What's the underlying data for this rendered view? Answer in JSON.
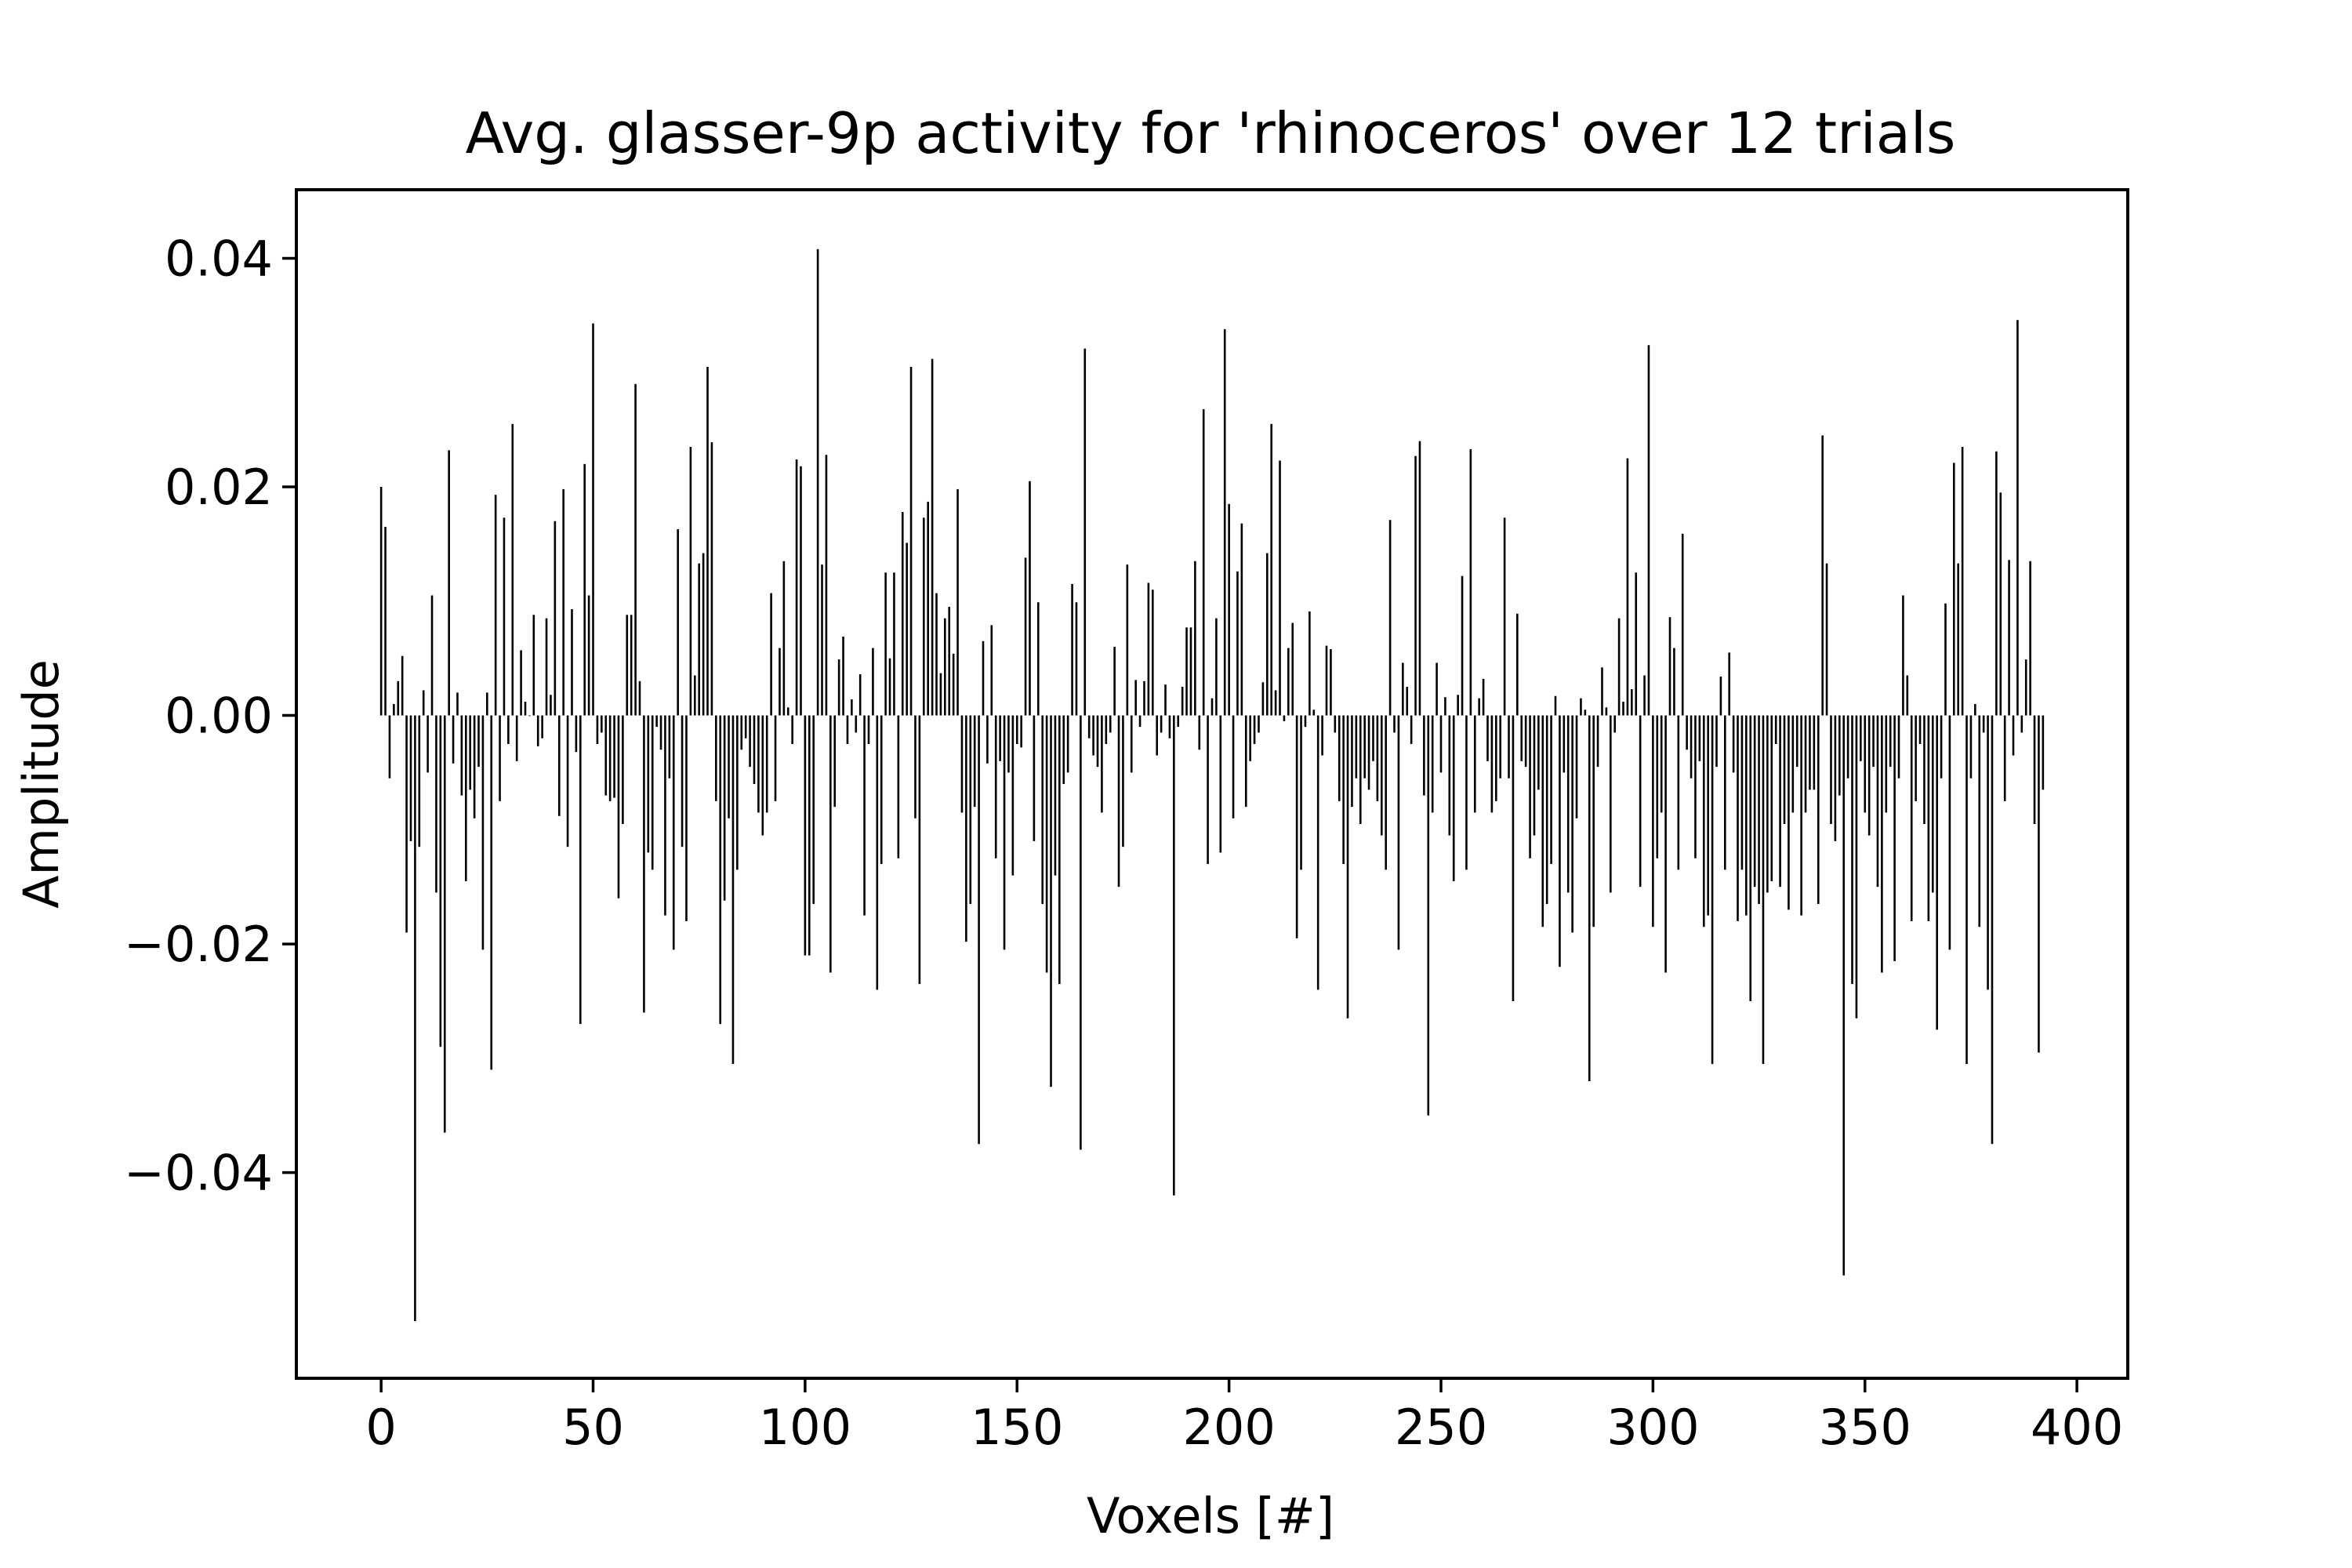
{
  "chart_data": {
    "type": "bar",
    "title": "Avg. glasser-9p activity for 'rhinoceros' over 12 trials",
    "xlabel": "Voxels [#]",
    "ylabel": "Amplitude",
    "xlim": [
      -20,
      412
    ],
    "ylim": [
      -0.058,
      0.046
    ],
    "xticks": [
      0,
      50,
      100,
      150,
      200,
      250,
      300,
      350,
      400
    ],
    "xtick_labels": [
      "0",
      "50",
      "100",
      "150",
      "200",
      "250",
      "300",
      "350",
      "400"
    ],
    "yticks": [
      -0.04,
      -0.02,
      0.0,
      0.02,
      0.04
    ],
    "ytick_labels": [
      "−0.04",
      "−0.02",
      "0.00",
      "0.02",
      "0.04"
    ],
    "grid": false,
    "bar_color": "#000000",
    "x": [
      0,
      1,
      2,
      3,
      4,
      5,
      6,
      7,
      8,
      9,
      10,
      11,
      12,
      13,
      14,
      15,
      16,
      17,
      18,
      19,
      20,
      21,
      22,
      23,
      24,
      25,
      26,
      27,
      28,
      29,
      30,
      31,
      32,
      33,
      34,
      35,
      36,
      37,
      38,
      39,
      40,
      41,
      42,
      43,
      44,
      45,
      46,
      47,
      48,
      49,
      50,
      51,
      52,
      53,
      54,
      55,
      56,
      57,
      58,
      59,
      60,
      61,
      62,
      63,
      64,
      65,
      66,
      67,
      68,
      69,
      70,
      71,
      72,
      73,
      74,
      75,
      76,
      77,
      78,
      79,
      80,
      81,
      82,
      83,
      84,
      85,
      86,
      87,
      88,
      89,
      90,
      91,
      92,
      93,
      94,
      95,
      96,
      97,
      98,
      99,
      100,
      101,
      102,
      103,
      104,
      105,
      106,
      107,
      108,
      109,
      110,
      111,
      112,
      113,
      114,
      115,
      116,
      117,
      118,
      119,
      120,
      121,
      122,
      123,
      124,
      125,
      126,
      127,
      128,
      129,
      130,
      131,
      132,
      133,
      134,
      135,
      136,
      137,
      138,
      139,
      140,
      141,
      142,
      143,
      144,
      145,
      146,
      147,
      148,
      149,
      150,
      151,
      152,
      153,
      154,
      155,
      156,
      157,
      158,
      159,
      160,
      161,
      162,
      163,
      164,
      165,
      166,
      167,
      168,
      169,
      170,
      171,
      172,
      173,
      174,
      175,
      176,
      177,
      178,
      179,
      180,
      181,
      182,
      183,
      184,
      185,
      186,
      187,
      188,
      189,
      190,
      191,
      192,
      193,
      194,
      195,
      196,
      197,
      198,
      199,
      200,
      201,
      202,
      203,
      204,
      205,
      206,
      207,
      208,
      209,
      210,
      211,
      212,
      213,
      214,
      215,
      216,
      217,
      218,
      219,
      220,
      221,
      222,
      223,
      224,
      225,
      226,
      227,
      228,
      229,
      230,
      231,
      232,
      233,
      234,
      235,
      236,
      237,
      238,
      239,
      240,
      241,
      242,
      243,
      244,
      245,
      246,
      247,
      248,
      249,
      250,
      251,
      252,
      253,
      254,
      255,
      256,
      257,
      258,
      259,
      260,
      261,
      262,
      263,
      264,
      265,
      266,
      267,
      268,
      269,
      270,
      271,
      272,
      273,
      274,
      275,
      276,
      277,
      278,
      279,
      280,
      281,
      282,
      283,
      284,
      285,
      286,
      287,
      288,
      289,
      290,
      291,
      292,
      293,
      294,
      295,
      296,
      297,
      298,
      299,
      300,
      301,
      302,
      303,
      304,
      305,
      306,
      307,
      308,
      309,
      310,
      311,
      312,
      313,
      314,
      315,
      316,
      317,
      318,
      319,
      320,
      321,
      322,
      323,
      324,
      325,
      326,
      327,
      328,
      329,
      330,
      331,
      332,
      333,
      334,
      335,
      336,
      337,
      338,
      339,
      340,
      341,
      342,
      343,
      344,
      345,
      346,
      347,
      348,
      349,
      350,
      351,
      352,
      353,
      354,
      355,
      356,
      357,
      358,
      359,
      360,
      361,
      362,
      363,
      364,
      365,
      366,
      367,
      368,
      369,
      370,
      371,
      372,
      373,
      374,
      375,
      376,
      377,
      378,
      379,
      380,
      381,
      382,
      383,
      384,
      385,
      386,
      387,
      388,
      389,
      390,
      391,
      392
    ],
    "values": [
      0.02,
      0.0165,
      -0.0055,
      0.001,
      0.003,
      0.0052,
      -0.019,
      -0.011,
      -0.053,
      -0.0115,
      0.0022,
      -0.005,
      0.0105,
      -0.0155,
      -0.029,
      -0.0365,
      0.0232,
      -0.0042,
      0.002,
      -0.007,
      -0.0145,
      -0.0065,
      -0.009,
      -0.0045,
      -0.0205,
      0.002,
      -0.031,
      0.0193,
      -0.0075,
      0.0173,
      -0.0025,
      0.0255,
      -0.004,
      0.0057,
      0.0012,
      0.0,
      0.0088,
      -0.0027,
      -0.002,
      0.0085,
      0.0018,
      0.017,
      -0.0088,
      0.0198,
      -0.0115,
      0.0093,
      -0.0032,
      -0.027,
      0.022,
      0.0105,
      0.0343,
      -0.0025,
      -0.0015,
      -0.007,
      -0.0075,
      -0.0072,
      -0.016,
      -0.0095,
      0.0088,
      0.0088,
      0.029,
      0.003,
      -0.026,
      -0.012,
      -0.0135,
      -0.001,
      -0.003,
      -0.0175,
      -0.0055,
      -0.0205,
      0.0163,
      -0.0115,
      -0.018,
      0.0235,
      0.0035,
      0.0133,
      0.0142,
      0.0305,
      0.0239,
      -0.0075,
      -0.027,
      -0.0162,
      -0.009,
      -0.0305,
      -0.0135,
      -0.003,
      -0.002,
      -0.0045,
      -0.006,
      -0.0085,
      -0.0105,
      -0.0085,
      0.0107,
      -0.0075,
      0.0059,
      0.0135,
      0.0007,
      -0.0025,
      0.0224,
      0.0218,
      -0.021,
      -0.021,
      -0.0165,
      0.0408,
      0.0132,
      0.0228,
      -0.0225,
      -0.008,
      0.0049,
      0.0069,
      -0.0025,
      0.0014,
      -0.0015,
      0.0036,
      -0.0175,
      -0.0025,
      0.0059,
      -0.024,
      -0.013,
      0.0125,
      0.005,
      0.0125,
      -0.0125,
      0.0178,
      0.0151,
      0.0305,
      -0.009,
      -0.0235,
      0.0173,
      0.0187,
      0.0312,
      0.0107,
      0.0037,
      0.0085,
      0.0095,
      0.0054,
      0.0198,
      -0.0085,
      -0.0198,
      -0.0165,
      -0.008,
      -0.0375,
      0.0065,
      -0.0042,
      0.0079,
      -0.0125,
      -0.004,
      -0.0205,
      -0.005,
      -0.014,
      -0.0025,
      -0.0028,
      0.0138,
      0.0205,
      -0.011,
      0.0099,
      -0.0165,
      -0.0225,
      -0.0325,
      -0.014,
      -0.0235,
      -0.006,
      -0.005,
      0.0115,
      0.0099,
      -0.038,
      0.0321,
      -0.002,
      -0.0035,
      -0.0045,
      -0.0085,
      -0.0025,
      -0.0015,
      0.006,
      -0.015,
      -0.0115,
      0.0132,
      -0.005,
      0.0031,
      -0.001,
      0.003,
      0.0116,
      0.011,
      -0.0035,
      -0.0015,
      0.0027,
      -0.002,
      -0.042,
      -0.001,
      0.0025,
      0.0077,
      0.0077,
      0.0135,
      -0.003,
      0.0268,
      -0.013,
      0.0015,
      0.0085,
      -0.012,
      0.0338,
      0.0185,
      -0.009,
      0.0126,
      0.0168,
      -0.008,
      -0.004,
      -0.0025,
      -0.0015,
      0.0029,
      0.0142,
      0.0255,
      0.0022,
      0.0223,
      -0.0005,
      0.0059,
      0.0081,
      -0.0195,
      -0.0135,
      -0.001,
      0.0091,
      0.0005,
      -0.024,
      -0.0035,
      0.0061,
      0.0058,
      -0.0015,
      -0.0075,
      -0.013,
      -0.0265,
      -0.008,
      -0.0055,
      -0.0095,
      -0.0055,
      -0.0065,
      -0.004,
      -0.0075,
      -0.0105,
      -0.0135,
      0.0171,
      -0.0015,
      -0.0205,
      0.0046,
      0.0025,
      -0.0025,
      0.0227,
      0.024,
      -0.007,
      -0.035,
      -0.0085,
      0.0046,
      -0.005,
      0.0016,
      -0.0105,
      -0.0145,
      0.0018,
      0.0122,
      -0.0135,
      0.0233,
      -0.0085,
      0.0015,
      0.0032,
      -0.004,
      -0.0085,
      -0.0075,
      -0.0055,
      0.0173,
      -0.0055,
      -0.025,
      0.0089,
      -0.004,
      -0.0045,
      -0.0125,
      -0.0105,
      -0.0065,
      -0.0185,
      -0.0165,
      -0.013,
      0.0017,
      -0.022,
      -0.005,
      -0.0155,
      -0.019,
      -0.009,
      0.0015,
      0.0005,
      -0.032,
      -0.0185,
      -0.0045,
      0.0042,
      0.0007,
      -0.0155,
      -0.0015,
      0.0085,
      0.0012,
      0.0225,
      0.0023,
      0.0125,
      -0.015,
      0.0035,
      0.0324,
      -0.0185,
      -0.0125,
      -0.0085,
      -0.0225,
      0.0086,
      0.0059,
      -0.0135,
      0.0159,
      -0.003,
      -0.0055,
      -0.0125,
      -0.004,
      -0.0185,
      -0.0175,
      -0.0305,
      -0.0045,
      0.0034,
      -0.0135,
      0.0055,
      -0.005,
      -0.018,
      -0.0135,
      -0.0175,
      -0.025,
      -0.015,
      -0.0165,
      -0.0305,
      -0.0155,
      -0.0145,
      -0.0025,
      -0.015,
      -0.0095,
      -0.017,
      -0.0085,
      -0.0045,
      -0.0175,
      -0.0085,
      -0.0065,
      -0.0065,
      -0.0165,
      0.0245,
      0.0133,
      -0.0095,
      -0.011,
      -0.007,
      -0.049,
      -0.0055,
      -0.0235,
      -0.0265,
      -0.004,
      -0.0085,
      -0.0105,
      -0.0045,
      -0.015,
      -0.0225,
      -0.0085,
      -0.0045,
      -0.0215,
      -0.0055,
      0.0105,
      0.0035,
      -0.018,
      -0.0075,
      -0.0025,
      -0.0095,
      -0.018,
      -0.0155,
      -0.0275,
      -0.0055,
      0.0098,
      -0.0205,
      0.0221,
      0.0133,
      0.0235,
      -0.0305,
      -0.0055,
      0.001,
      -0.0185,
      -0.0015,
      -0.024,
      -0.0375,
      0.0231,
      0.0195,
      -0.0075,
      0.0136,
      -0.0035,
      0.0346,
      -0.0015,
      0.0049,
      0.0135,
      -0.0095,
      -0.0295,
      -0.0065
    ]
  }
}
